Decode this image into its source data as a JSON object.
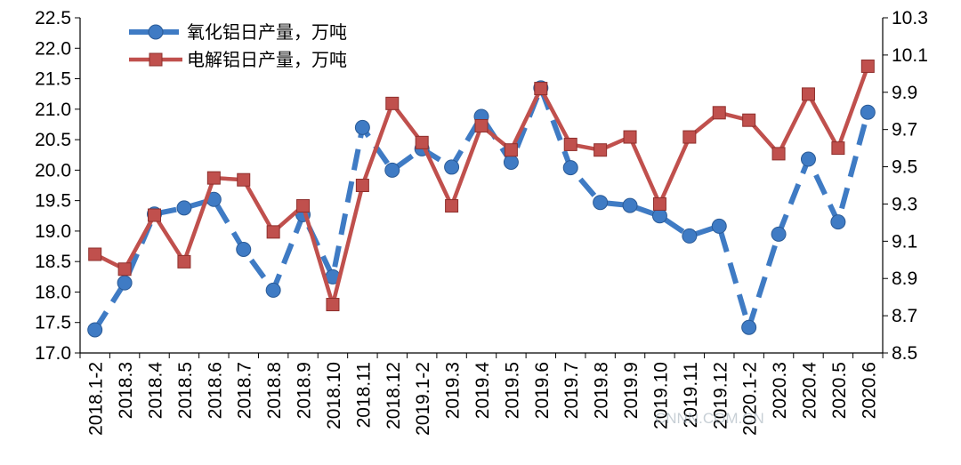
{
  "chart_data": {
    "type": "line",
    "categories": [
      "2018.1-2",
      "2018.3",
      "2018.4",
      "2018.5",
      "2018.6",
      "2018.7",
      "2018.8",
      "2018.9",
      "2018.10",
      "2018.11",
      "2018.12",
      "2019.1-2",
      "2019.3",
      "2019.4",
      "2019.5",
      "2019.6",
      "2019.7",
      "2019.8",
      "2019.9",
      "2019.10",
      "2019.11",
      "2019.12",
      "2020.1-2",
      "2020.3",
      "2020.4",
      "2020.5",
      "2020.6"
    ],
    "series": [
      {
        "name": "氧化铝日产量，万吨",
        "axis": "left",
        "color": "#3f7bc4",
        "style": "dashed",
        "marker": "circle",
        "values": [
          17.38,
          18.15,
          19.28,
          19.38,
          19.52,
          18.7,
          18.03,
          19.27,
          18.25,
          20.7,
          20.0,
          20.35,
          20.05,
          20.88,
          20.13,
          21.35,
          20.04,
          19.47,
          19.42,
          19.25,
          18.92,
          19.08,
          17.42,
          18.95,
          20.18,
          19.15,
          20.95
        ]
      },
      {
        "name": "电解铝日产量，万吨",
        "axis": "right",
        "color": "#c0504d",
        "style": "solid",
        "marker": "square",
        "values": [
          9.03,
          8.95,
          9.24,
          8.99,
          9.44,
          9.43,
          9.15,
          9.29,
          8.76,
          9.4,
          9.84,
          9.63,
          9.29,
          9.72,
          9.59,
          9.92,
          9.62,
          9.59,
          9.66,
          9.3,
          9.66,
          9.79,
          9.75,
          9.57,
          9.89,
          9.6,
          10.04
        ]
      }
    ],
    "y_left": {
      "min": 17.0,
      "max": 22.5,
      "step": 0.5,
      "ticks": [
        "17.0",
        "17.5",
        "18.0",
        "18.5",
        "19.0",
        "19.5",
        "20.0",
        "20.5",
        "21.0",
        "21.5",
        "22.0",
        "22.5"
      ]
    },
    "y_right": {
      "min": 8.5,
      "max": 10.3,
      "step": 0.2,
      "ticks": [
        "8.5",
        "8.7",
        "8.9",
        "9.1",
        "9.3",
        "9.5",
        "9.7",
        "9.9",
        "10.1",
        "10.3"
      ]
    },
    "grid": false,
    "legend_position": "top-left"
  },
  "watermark": "CNNN.COM.CN"
}
